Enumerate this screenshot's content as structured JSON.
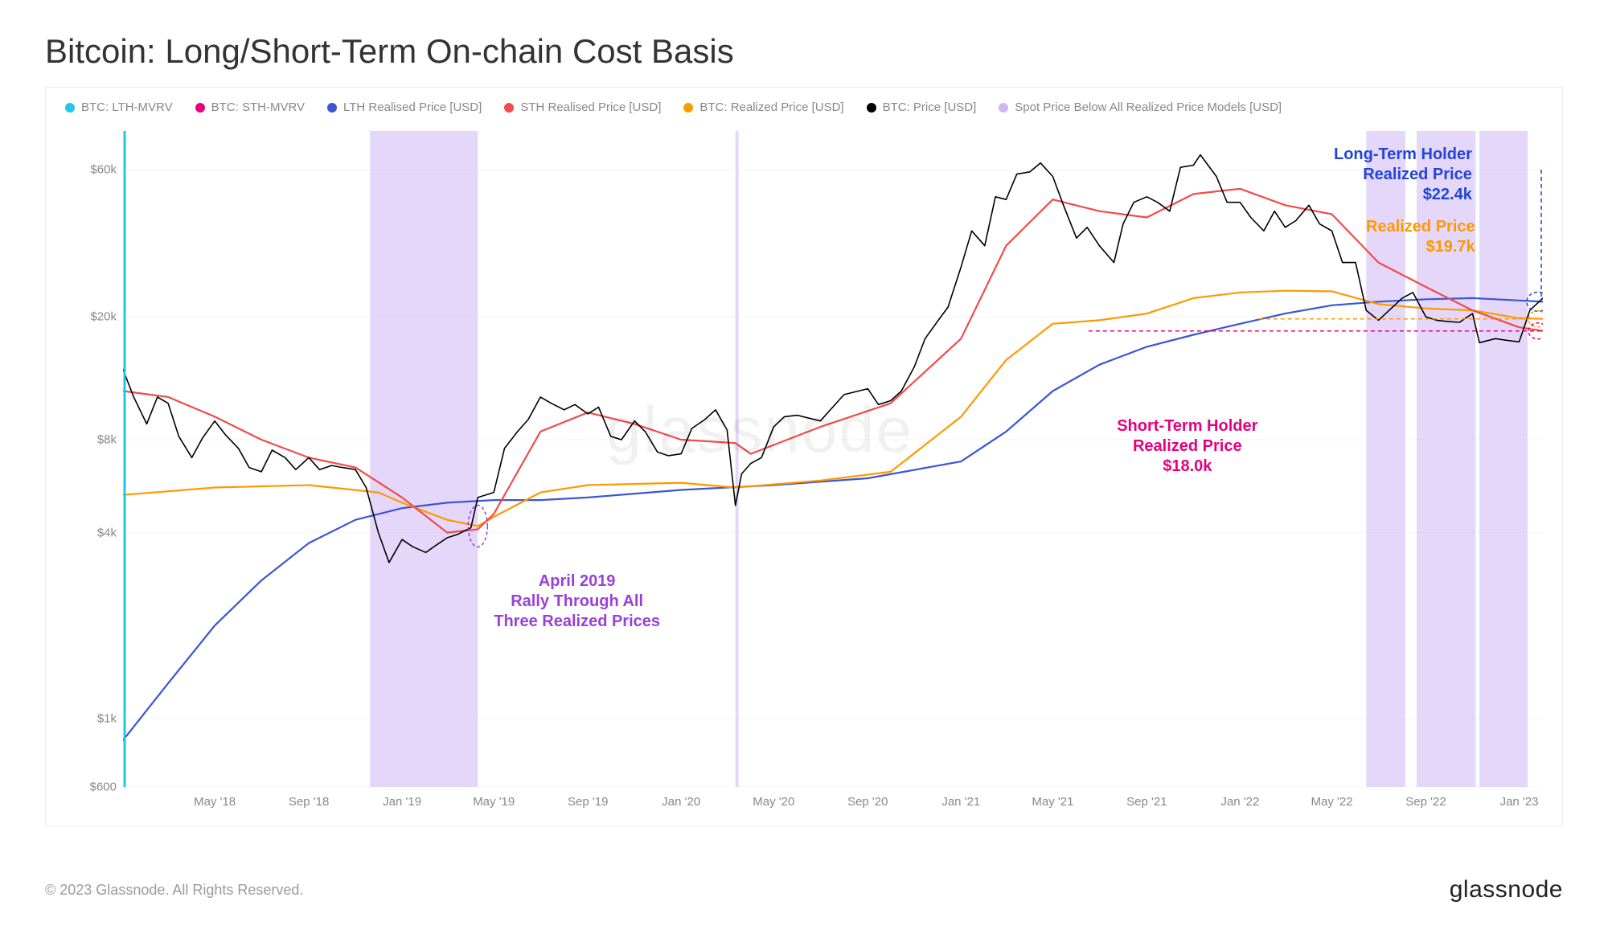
{
  "title": "Bitcoin: Long/Short-Term On-chain Cost Basis",
  "copyright": "© 2023 Glassnode. All Rights Reserved.",
  "brand": "glassnode",
  "watermark": "glassnode",
  "legend": [
    {
      "label": "BTC: LTH-MVRV",
      "color": "#21c6ed"
    },
    {
      "label": "BTC: STH-MVRV",
      "color": "#e6007e"
    },
    {
      "label": "LTH Realised Price [USD]",
      "color": "#3a56d4"
    },
    {
      "label": "STH Realised Price [USD]",
      "color": "#f24b4b"
    },
    {
      "label": "BTC: Realized Price [USD]",
      "color": "#ff9900"
    },
    {
      "label": "BTC: Price [USD]",
      "color": "#000000"
    },
    {
      "label": "Spot Price Below All Realized Price Models [USD]",
      "color": "#cdb7f5"
    }
  ],
  "axes": {
    "y": {
      "scale": "log",
      "min": 600,
      "max": 80000,
      "ticks": [
        600,
        1000,
        4000,
        8000,
        20000,
        60000
      ],
      "tick_labels": [
        "$600",
        "$1k",
        "$4k",
        "$8k",
        "$20k",
        "$60k"
      ],
      "label_color": "#888888",
      "label_fontsize": 15
    },
    "x": {
      "min": "2018-01-01",
      "max": "2023-02-01",
      "ticks": [
        "2018-05-01",
        "2018-09-01",
        "2019-01-01",
        "2019-05-01",
        "2019-09-01",
        "2020-01-01",
        "2020-05-01",
        "2020-09-01",
        "2021-01-01",
        "2021-05-01",
        "2021-09-01",
        "2022-01-01",
        "2022-05-01",
        "2022-09-01",
        "2023-01-01"
      ],
      "tick_labels": [
        "May '18",
        "Sep '18",
        "Jan '19",
        "May '19",
        "Sep '19",
        "Jan '20",
        "May '20",
        "Sep '20",
        "Jan '21",
        "May '21",
        "Sep '21",
        "Jan '22",
        "May '22",
        "Sep '22",
        "Jan '23"
      ],
      "label_color": "#888888",
      "label_fontsize": 15
    }
  },
  "colors": {
    "grid": "#f4f4f4",
    "border": "#eeeeee",
    "bg": "#ffffff",
    "fill_band": "#cdb7f5",
    "fill_band_opacity": 0.55
  },
  "series": {
    "price": {
      "name": "BTC: Price [USD]",
      "color": "#000000",
      "linewidth": 1.6,
      "points": [
        [
          "2018-01-01",
          13500
        ],
        [
          "2018-01-15",
          11000
        ],
        [
          "2018-02-01",
          9000
        ],
        [
          "2018-02-15",
          11000
        ],
        [
          "2018-03-01",
          10500
        ],
        [
          "2018-03-15",
          8200
        ],
        [
          "2018-04-01",
          7000
        ],
        [
          "2018-04-15",
          8100
        ],
        [
          "2018-05-01",
          9200
        ],
        [
          "2018-05-15",
          8300
        ],
        [
          "2018-06-01",
          7500
        ],
        [
          "2018-06-15",
          6500
        ],
        [
          "2018-07-01",
          6300
        ],
        [
          "2018-07-15",
          7400
        ],
        [
          "2018-08-01",
          7000
        ],
        [
          "2018-08-15",
          6400
        ],
        [
          "2018-09-01",
          7000
        ],
        [
          "2018-09-15",
          6400
        ],
        [
          "2018-10-01",
          6600
        ],
        [
          "2018-10-15",
          6500
        ],
        [
          "2018-11-01",
          6400
        ],
        [
          "2018-11-15",
          5600
        ],
        [
          "2018-12-01",
          4000
        ],
        [
          "2018-12-15",
          3200
        ],
        [
          "2019-01-01",
          3800
        ],
        [
          "2019-01-15",
          3600
        ],
        [
          "2019-02-01",
          3450
        ],
        [
          "2019-02-15",
          3650
        ],
        [
          "2019-03-01",
          3850
        ],
        [
          "2019-03-15",
          3950
        ],
        [
          "2019-04-01",
          4150
        ],
        [
          "2019-04-10",
          5200
        ],
        [
          "2019-05-01",
          5400
        ],
        [
          "2019-05-15",
          7500
        ],
        [
          "2019-06-01",
          8500
        ],
        [
          "2019-06-15",
          9300
        ],
        [
          "2019-07-01",
          11000
        ],
        [
          "2019-07-15",
          10500
        ],
        [
          "2019-08-01",
          10000
        ],
        [
          "2019-08-15",
          10400
        ],
        [
          "2019-09-01",
          9700
        ],
        [
          "2019-09-15",
          10200
        ],
        [
          "2019-10-01",
          8200
        ],
        [
          "2019-10-15",
          8000
        ],
        [
          "2019-11-01",
          9200
        ],
        [
          "2019-11-15",
          8500
        ],
        [
          "2019-12-01",
          7300
        ],
        [
          "2019-12-15",
          7100
        ],
        [
          "2020-01-01",
          7200
        ],
        [
          "2020-01-15",
          8700
        ],
        [
          "2020-02-01",
          9300
        ],
        [
          "2020-02-15",
          10000
        ],
        [
          "2020-03-01",
          8600
        ],
        [
          "2020-03-12",
          4900
        ],
        [
          "2020-03-20",
          6200
        ],
        [
          "2020-04-01",
          6700
        ],
        [
          "2020-04-15",
          7000
        ],
        [
          "2020-05-01",
          8800
        ],
        [
          "2020-05-15",
          9500
        ],
        [
          "2020-06-01",
          9600
        ],
        [
          "2020-07-01",
          9200
        ],
        [
          "2020-08-01",
          11200
        ],
        [
          "2020-09-01",
          11700
        ],
        [
          "2020-09-15",
          10400
        ],
        [
          "2020-10-01",
          10700
        ],
        [
          "2020-10-15",
          11500
        ],
        [
          "2020-11-01",
          13800
        ],
        [
          "2020-11-15",
          17000
        ],
        [
          "2020-12-01",
          19300
        ],
        [
          "2020-12-15",
          21500
        ],
        [
          "2021-01-01",
          29000
        ],
        [
          "2021-01-15",
          38000
        ],
        [
          "2021-02-01",
          34000
        ],
        [
          "2021-02-15",
          49000
        ],
        [
          "2021-03-01",
          48000
        ],
        [
          "2021-03-15",
          58000
        ],
        [
          "2021-04-01",
          59000
        ],
        [
          "2021-04-15",
          63000
        ],
        [
          "2021-05-01",
          57000
        ],
        [
          "2021-05-15",
          46000
        ],
        [
          "2021-06-01",
          36000
        ],
        [
          "2021-06-15",
          39000
        ],
        [
          "2021-07-01",
          34000
        ],
        [
          "2021-07-20",
          30000
        ],
        [
          "2021-08-01",
          40000
        ],
        [
          "2021-08-15",
          47000
        ],
        [
          "2021-09-01",
          49000
        ],
        [
          "2021-09-15",
          47000
        ],
        [
          "2021-10-01",
          44000
        ],
        [
          "2021-10-15",
          61000
        ],
        [
          "2021-11-01",
          62000
        ],
        [
          "2021-11-10",
          67000
        ],
        [
          "2021-12-01",
          57000
        ],
        [
          "2021-12-15",
          47000
        ],
        [
          "2022-01-01",
          47000
        ],
        [
          "2022-01-15",
          42000
        ],
        [
          "2022-02-01",
          38000
        ],
        [
          "2022-02-15",
          44000
        ],
        [
          "2022-03-01",
          39000
        ],
        [
          "2022-03-15",
          41000
        ],
        [
          "2022-04-01",
          46000
        ],
        [
          "2022-04-15",
          40000
        ],
        [
          "2022-05-01",
          38000
        ],
        [
          "2022-05-15",
          30000
        ],
        [
          "2022-06-01",
          30000
        ],
        [
          "2022-06-15",
          21000
        ],
        [
          "2022-07-01",
          19500
        ],
        [
          "2022-07-15",
          21000
        ],
        [
          "2022-08-01",
          23000
        ],
        [
          "2022-08-15",
          24000
        ],
        [
          "2022-09-01",
          20000
        ],
        [
          "2022-09-15",
          19500
        ],
        [
          "2022-10-01",
          19300
        ],
        [
          "2022-10-15",
          19200
        ],
        [
          "2022-11-01",
          20500
        ],
        [
          "2022-11-10",
          16500
        ],
        [
          "2022-12-01",
          17000
        ],
        [
          "2022-12-15",
          16800
        ],
        [
          "2023-01-01",
          16600
        ],
        [
          "2023-01-15",
          21000
        ],
        [
          "2023-02-01",
          23000
        ]
      ]
    },
    "sth": {
      "name": "STH Realised Price [USD]",
      "color": "#f24b4b",
      "linewidth": 2.2,
      "points": [
        [
          "2018-01-01",
          11500
        ],
        [
          "2018-03-01",
          11000
        ],
        [
          "2018-05-01",
          9500
        ],
        [
          "2018-07-01",
          8000
        ],
        [
          "2018-09-01",
          7000
        ],
        [
          "2018-11-01",
          6500
        ],
        [
          "2019-01-01",
          5200
        ],
        [
          "2019-03-01",
          4000
        ],
        [
          "2019-04-10",
          4100
        ],
        [
          "2019-05-01",
          4600
        ],
        [
          "2019-07-01",
          8500
        ],
        [
          "2019-09-01",
          9800
        ],
        [
          "2019-11-01",
          9000
        ],
        [
          "2020-01-01",
          8000
        ],
        [
          "2020-03-12",
          7800
        ],
        [
          "2020-04-01",
          7200
        ],
        [
          "2020-07-01",
          8800
        ],
        [
          "2020-10-01",
          10500
        ],
        [
          "2021-01-01",
          17000
        ],
        [
          "2021-03-01",
          34000
        ],
        [
          "2021-05-01",
          48000
        ],
        [
          "2021-07-01",
          44000
        ],
        [
          "2021-09-01",
          42000
        ],
        [
          "2021-11-01",
          50000
        ],
        [
          "2022-01-01",
          52000
        ],
        [
          "2022-03-01",
          46000
        ],
        [
          "2022-05-01",
          43000
        ],
        [
          "2022-07-01",
          30000
        ],
        [
          "2022-09-01",
          25000
        ],
        [
          "2022-11-01",
          21000
        ],
        [
          "2023-01-01",
          18500
        ],
        [
          "2023-02-01",
          18000
        ]
      ]
    },
    "lth": {
      "name": "LTH Realised Price [USD]",
      "color": "#3a56d4",
      "linewidth": 2.2,
      "points": [
        [
          "2018-01-01",
          850
        ],
        [
          "2018-03-01",
          1300
        ],
        [
          "2018-05-01",
          2000
        ],
        [
          "2018-07-01",
          2800
        ],
        [
          "2018-09-01",
          3700
        ],
        [
          "2018-11-01",
          4400
        ],
        [
          "2019-01-01",
          4800
        ],
        [
          "2019-03-01",
          5000
        ],
        [
          "2019-05-01",
          5100
        ],
        [
          "2019-07-01",
          5100
        ],
        [
          "2019-09-01",
          5200
        ],
        [
          "2020-01-01",
          5500
        ],
        [
          "2020-05-01",
          5700
        ],
        [
          "2020-09-01",
          6000
        ],
        [
          "2021-01-01",
          6800
        ],
        [
          "2021-03-01",
          8500
        ],
        [
          "2021-05-01",
          11500
        ],
        [
          "2021-07-01",
          14000
        ],
        [
          "2021-09-01",
          16000
        ],
        [
          "2021-11-01",
          17500
        ],
        [
          "2022-01-01",
          19000
        ],
        [
          "2022-03-01",
          20500
        ],
        [
          "2022-05-01",
          21800
        ],
        [
          "2022-07-01",
          22400
        ],
        [
          "2022-09-01",
          22800
        ],
        [
          "2022-11-01",
          23000
        ],
        [
          "2023-01-01",
          22600
        ],
        [
          "2023-02-01",
          22400
        ]
      ]
    },
    "realized": {
      "name": "BTC: Realized Price [USD]",
      "color": "#ff9900",
      "linewidth": 2.2,
      "points": [
        [
          "2018-01-01",
          5300
        ],
        [
          "2018-05-01",
          5600
        ],
        [
          "2018-09-01",
          5700
        ],
        [
          "2018-12-01",
          5400
        ],
        [
          "2019-01-01",
          5000
        ],
        [
          "2019-03-01",
          4400
        ],
        [
          "2019-04-10",
          4200
        ],
        [
          "2019-05-01",
          4500
        ],
        [
          "2019-07-01",
          5400
        ],
        [
          "2019-09-01",
          5700
        ],
        [
          "2020-01-01",
          5800
        ],
        [
          "2020-03-12",
          5600
        ],
        [
          "2020-07-01",
          5900
        ],
        [
          "2020-10-01",
          6300
        ],
        [
          "2021-01-01",
          9500
        ],
        [
          "2021-03-01",
          14500
        ],
        [
          "2021-05-01",
          19000
        ],
        [
          "2021-07-01",
          19500
        ],
        [
          "2021-09-01",
          20500
        ],
        [
          "2021-11-01",
          23000
        ],
        [
          "2022-01-01",
          24000
        ],
        [
          "2022-03-01",
          24300
        ],
        [
          "2022-05-01",
          24200
        ],
        [
          "2022-07-01",
          22000
        ],
        [
          "2022-09-01",
          21300
        ],
        [
          "2022-11-01",
          21000
        ],
        [
          "2023-01-01",
          19800
        ],
        [
          "2023-02-01",
          19700
        ]
      ]
    }
  },
  "fill_bands": [
    {
      "x0": "2018-11-20",
      "x1": "2019-04-10"
    },
    {
      "x0": "2020-03-12",
      "x1": "2020-03-16"
    },
    {
      "x0": "2022-06-15",
      "x1": "2022-08-05"
    },
    {
      "x0": "2022-08-20",
      "x1": "2022-11-05"
    },
    {
      "x0": "2022-11-10",
      "x1": "2023-01-12"
    }
  ],
  "annotations": {
    "lth": {
      "line1": "Long-Term Holder",
      "line2": "Realized Price",
      "line3": "$22.4k",
      "color": "#2244dd",
      "y_value": 22400
    },
    "realized": {
      "line1": "Realized Price",
      "line2": "$19.7k",
      "color": "#ff9900",
      "y_value": 19700
    },
    "sth": {
      "line1": "Short-Term Holder",
      "line2": "Realized Price",
      "line3": "$18.0k",
      "color": "#e6007e",
      "y_value": 18000
    },
    "april2019": {
      "line1": "April 2019",
      "line2": "Rally Through All",
      "line3": "Three Realized Prices",
      "color": "#9b3fd9",
      "x_at": "2019-04-10",
      "y_value": 4200
    }
  }
}
